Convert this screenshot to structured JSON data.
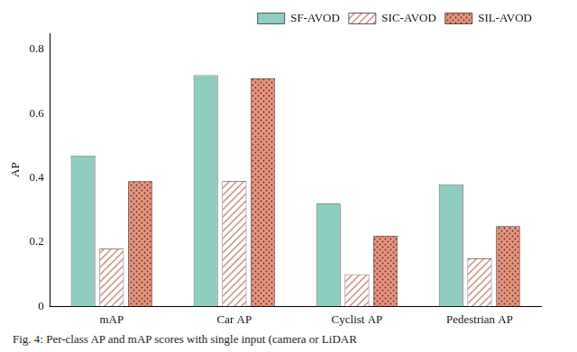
{
  "chart_data": {
    "type": "bar",
    "categories": [
      "mAP",
      "Car AP",
      "Cyclist AP",
      "Pedestrian AP"
    ],
    "series": [
      {
        "name": "SF-AVOD",
        "color": "#8ecdc0",
        "values": [
          0.47,
          0.72,
          0.32,
          0.38
        ]
      },
      {
        "name": "SIC-AVOD",
        "color": "#c98a7a",
        "values": [
          0.18,
          0.39,
          0.1,
          0.15
        ]
      },
      {
        "name": "SIL-AVOD",
        "color": "#e9947f",
        "values": [
          0.39,
          0.71,
          0.22,
          0.25
        ]
      }
    ],
    "y_label": "AP",
    "ylim": [
      0,
      0.85
    ],
    "yticks": [
      0,
      0.2,
      0.4,
      0.6,
      0.8
    ],
    "grid": false,
    "legend": "upper right",
    "caption": "Fig. 4: Per-class AP and mAP scores with single input (camera or LiDAR"
  }
}
